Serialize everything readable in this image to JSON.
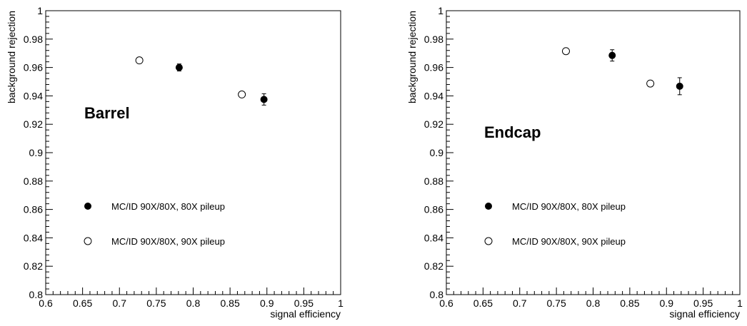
{
  "chart_data": [
    {
      "type": "scatter",
      "label": "Barrel",
      "xlabel": "signal efficiency",
      "ylabel": "background rejection",
      "xlim": [
        0.6,
        1.0
      ],
      "ylim": [
        0.8,
        1.0
      ],
      "x_ticks": [
        "0.6",
        "0.65",
        "0.7",
        "0.75",
        "0.8",
        "0.85",
        "0.9",
        "0.95",
        "1"
      ],
      "y_ticks": [
        "0.8",
        "0.82",
        "0.84",
        "0.86",
        "0.88",
        "0.9",
        "0.92",
        "0.94",
        "0.96",
        "0.98",
        "1"
      ],
      "grid": false,
      "legend_position": "lower-left",
      "series": [
        {
          "name": "MC/ID 90X/80X, 80X pileup",
          "marker": "filled-circle",
          "points": [
            {
              "x": 0.781,
              "y": 0.96,
              "yerr": 0.0025
            },
            {
              "x": 0.896,
              "y": 0.9375,
              "yerr": 0.004
            }
          ]
        },
        {
          "name": "MC/ID 90X/80X, 90X pileup",
          "marker": "open-circle",
          "points": [
            {
              "x": 0.727,
              "y": 0.965,
              "yerr": 0
            },
            {
              "x": 0.866,
              "y": 0.941,
              "yerr": 0
            }
          ]
        }
      ]
    },
    {
      "type": "scatter",
      "label": "Endcap",
      "xlabel": "signal efficiency",
      "ylabel": "background rejection",
      "xlim": [
        0.6,
        1.0
      ],
      "ylim": [
        0.8,
        1.0
      ],
      "x_ticks": [
        "0.6",
        "0.65",
        "0.7",
        "0.75",
        "0.8",
        "0.85",
        "0.9",
        "0.95",
        "1"
      ],
      "y_ticks": [
        "0.8",
        "0.82",
        "0.84",
        "0.86",
        "0.88",
        "0.9",
        "0.92",
        "0.94",
        "0.96",
        "0.98",
        "1"
      ],
      "grid": false,
      "legend_position": "lower-left",
      "series": [
        {
          "name": "MC/ID 90X/80X, 80X pileup",
          "marker": "filled-circle",
          "points": [
            {
              "x": 0.826,
              "y": 0.9685,
              "yerr": 0.004
            },
            {
              "x": 0.918,
              "y": 0.9468,
              "yerr": 0.006
            }
          ]
        },
        {
          "name": "MC/ID 90X/80X, 90X pileup",
          "marker": "open-circle",
          "points": [
            {
              "x": 0.763,
              "y": 0.9715,
              "yerr": 0
            },
            {
              "x": 0.878,
              "y": 0.9487,
              "yerr": 0
            }
          ]
        }
      ]
    }
  ]
}
